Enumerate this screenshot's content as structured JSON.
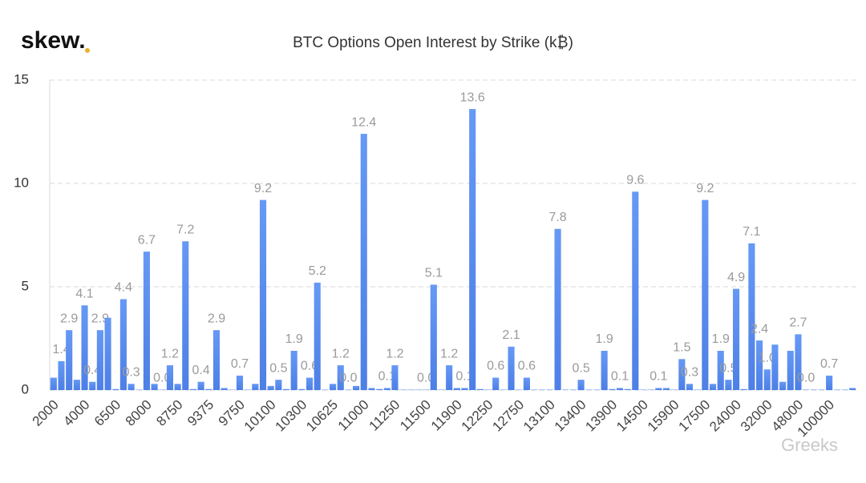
{
  "logo": "skew.",
  "watermark": "Greeks",
  "chart_data": {
    "type": "bar",
    "title": "BTC Options Open Interest by Strike (k₿)",
    "color": "#5b8ff0",
    "grid": true,
    "ylim": [
      0,
      15
    ],
    "yticks": [
      0,
      5,
      10,
      15
    ],
    "categories": [
      "2000",
      null,
      null,
      null,
      "4000",
      null,
      null,
      null,
      "6500",
      null,
      null,
      null,
      "8000",
      null,
      null,
      null,
      "8750",
      null,
      null,
      null,
      "9375",
      null,
      null,
      null,
      "9750",
      null,
      null,
      null,
      "10100",
      null,
      null,
      null,
      "10300",
      null,
      null,
      null,
      "10625",
      null,
      null,
      null,
      "11000",
      null,
      null,
      null,
      "11250",
      null,
      null,
      null,
      "11500",
      null,
      null,
      null,
      "11900",
      null,
      null,
      null,
      "12250",
      null,
      null,
      null,
      "12750",
      null,
      null,
      null,
      "13100",
      null,
      null,
      null,
      "13400",
      null,
      null,
      null,
      "13900",
      null,
      null,
      null,
      "14500",
      null,
      null,
      null,
      "15900",
      null,
      null,
      null,
      "17500",
      null,
      null,
      null,
      "24000",
      null,
      null,
      null,
      "32000",
      null,
      null,
      null,
      "48000",
      null,
      null,
      null,
      "100000",
      null,
      null,
      null
    ],
    "values": [
      0.6,
      1.4,
      2.9,
      0.5,
      4.1,
      0.4,
      2.9,
      3.5,
      0.05,
      4.4,
      0.3,
      0.02,
      6.7,
      0.3,
      0.02,
      1.2,
      0.3,
      7.2,
      0.05,
      0.4,
      0.05,
      2.9,
      0.1,
      0.02,
      0.7,
      0.02,
      0.3,
      9.2,
      0.2,
      0.5,
      0.05,
      1.9,
      0.05,
      0.6,
      5.2,
      0.02,
      0.3,
      1.2,
      0.02,
      0.2,
      12.4,
      0.1,
      0.05,
      0.1,
      1.2,
      0.02,
      0.02,
      0.02,
      0.02,
      5.1,
      0.02,
      1.2,
      0.1,
      0.1,
      13.6,
      0.05,
      0.02,
      0.6,
      0.02,
      2.1,
      0.02,
      0.6,
      0.02,
      0.02,
      0.02,
      7.8,
      0.02,
      0.02,
      0.5,
      0.02,
      0.02,
      1.9,
      0.05,
      0.1,
      0.05,
      9.6,
      0.02,
      0.02,
      0.1,
      0.1,
      0.02,
      1.5,
      0.3,
      0.02,
      9.2,
      0.3,
      1.9,
      0.5,
      4.9,
      0.05,
      7.1,
      2.4,
      1.0,
      2.2,
      0.4,
      1.9,
      2.7,
      0.02,
      0.02,
      0.02,
      0.7,
      0.02,
      0.02,
      0.1
    ],
    "value_labels": [
      null,
      "1.4",
      "2.9",
      null,
      "4.1",
      "0.4",
      "2.9",
      null,
      null,
      "4.4",
      "0.3",
      null,
      "6.7",
      null,
      "0.0",
      "1.2",
      null,
      "7.2",
      null,
      "0.4",
      null,
      "2.9",
      null,
      null,
      "0.7",
      null,
      null,
      "9.2",
      null,
      "0.5",
      null,
      "1.9",
      null,
      "0.6",
      "5.2",
      null,
      null,
      "1.2",
      "0.0",
      null,
      "12.4",
      null,
      null,
      "0.1",
      "1.2",
      null,
      null,
      null,
      "0.0",
      "5.1",
      null,
      "1.2",
      null,
      "0.1",
      "13.6",
      null,
      null,
      "0.6",
      null,
      "2.1",
      null,
      "0.6",
      null,
      null,
      null,
      "7.8",
      null,
      null,
      "0.5",
      null,
      null,
      "1.9",
      null,
      "0.1",
      null,
      "9.6",
      null,
      null,
      "0.1",
      null,
      null,
      "1.5",
      "0.3",
      null,
      "9.2",
      null,
      "1.9",
      "0.5",
      "4.9",
      null,
      "7.1",
      "2.4",
      "1.0",
      null,
      null,
      null,
      "2.7",
      "0.0",
      null,
      null,
      "0.7",
      null,
      null,
      null
    ]
  }
}
